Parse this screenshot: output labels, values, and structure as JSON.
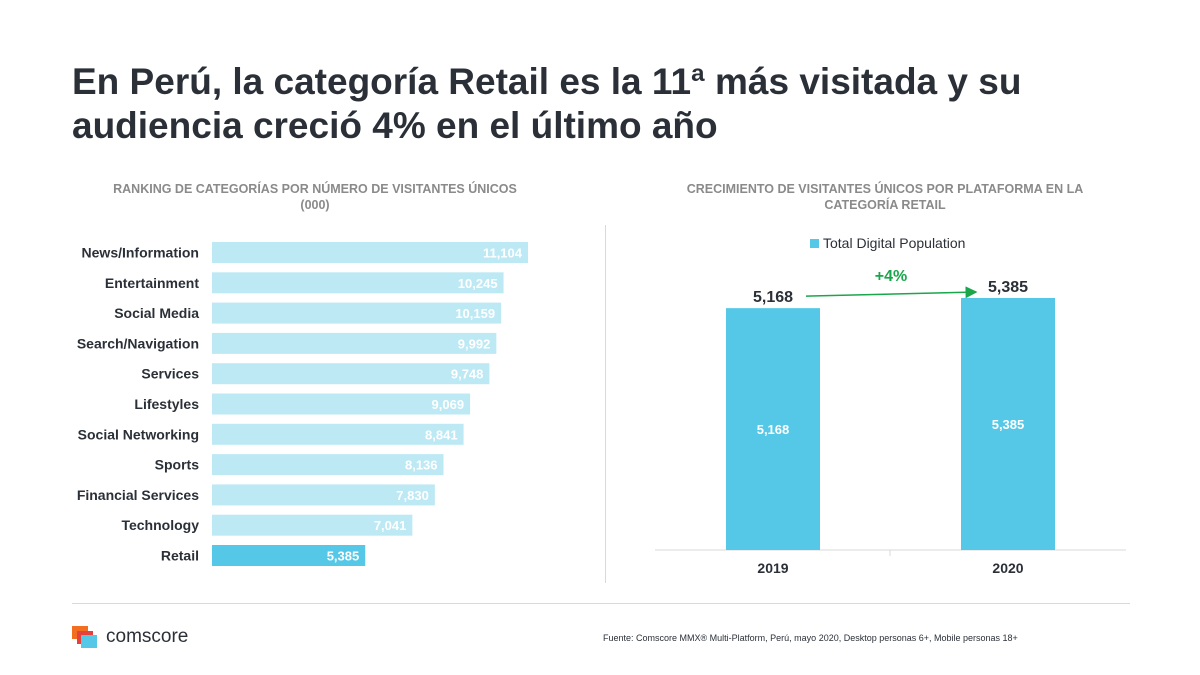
{
  "title": "En Perú, la categoría Retail es la 11ª más visitada y su audiencia creció 4% en el último año",
  "left_subtitle_line1": "RANKING DE CATEGORÍAS POR NÚMERO DE VISITANTES ÚNICOS",
  "left_subtitle_line2": "(000)",
  "right_subtitle_line1": "CRECIMIENTO DE VISITANTES ÚNICOS POR PLATAFORMA EN LA",
  "right_subtitle_line2": "CATEGORÍA RETAIL",
  "legend_label": "Total Digital Population",
  "growth_label": "+4%",
  "source": "Fuente: Comscore MMX® Multi-Platform, Perú, mayo 2020, Desktop personas 6+, Mobile personas 18+",
  "logo_text": "comscore",
  "colors": {
    "light_bar": "#bde9f5",
    "highlight_bar": "#55c8e8",
    "growth": "#1aa64a",
    "text": "#2b3038"
  },
  "chart_data": [
    {
      "type": "bar",
      "orientation": "horizontal",
      "categories": [
        "News/Information",
        "Entertainment",
        "Social Media",
        "Search/Navigation",
        "Services",
        "Lifestyles",
        "Social Networking",
        "Sports",
        "Financial Services",
        "Technology",
        "Retail"
      ],
      "values": [
        11104,
        10245,
        10159,
        9992,
        9748,
        9069,
        8841,
        8136,
        7830,
        7041,
        5385
      ],
      "value_labels": [
        "11,104",
        "10,245",
        "10,159",
        "9,992",
        "9,748",
        "9,069",
        "8,841",
        "8,136",
        "7,830",
        "7,041",
        "5,385"
      ],
      "highlight": "Retail",
      "title": "RANKING DE CATEGORÍAS POR NÚMERO DE VISITANTES ÚNICOS (000)"
    },
    {
      "type": "bar",
      "categories": [
        "2019",
        "2020"
      ],
      "series": [
        {
          "name": "Total Digital Population",
          "values": [
            5168,
            5385
          ]
        }
      ],
      "value_labels": [
        "5,168",
        "5,385"
      ],
      "title": "CRECIMIENTO DE VISITANTES ÚNICOS POR PLATAFORMA EN LA CATEGORÍA RETAIL",
      "annotation": "+4%"
    }
  ]
}
